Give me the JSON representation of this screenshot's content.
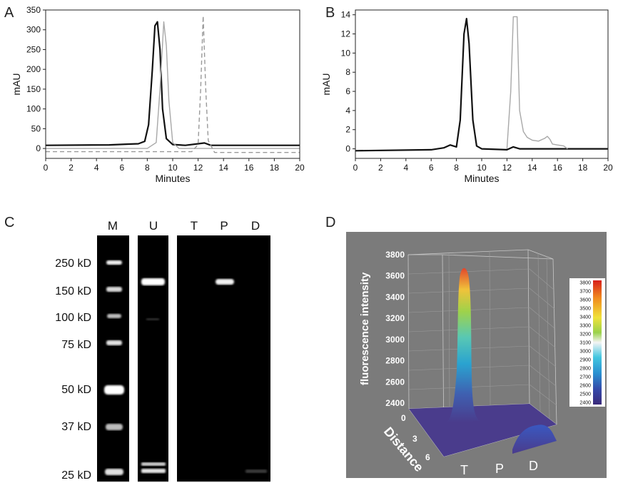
{
  "colors": {
    "black_trace": "#111111",
    "gray_trace": "#a8a8a8",
    "dashed_trace": "#999999",
    "panel_d_bg": "#7b7b7b",
    "floor": "#4a3c8c"
  },
  "panel_labels": [
    "A",
    "B",
    "C",
    "D"
  ],
  "chart_data": [
    {
      "panel": "A",
      "type": "line",
      "xlabel": "Minutes",
      "ylabel": "mAU",
      "xlim": [
        0,
        20
      ],
      "ylim": [
        -25,
        350
      ],
      "xticks": [
        0,
        2,
        4,
        6,
        8,
        10,
        12,
        14,
        16,
        18,
        20
      ],
      "yticks": [
        0,
        50,
        100,
        150,
        200,
        250,
        300,
        350
      ],
      "series": [
        {
          "style": "solid-black",
          "x": [
            0,
            5,
            6.5,
            7.3,
            7.8,
            8.1,
            8.4,
            8.6,
            8.8,
            9.0,
            9.2,
            9.5,
            10,
            11,
            12,
            12.5,
            13,
            20
          ],
          "y": [
            8,
            9,
            11,
            12,
            18,
            60,
            200,
            310,
            320,
            250,
            100,
            25,
            10,
            8,
            12,
            14,
            8,
            8
          ]
        },
        {
          "style": "solid-gray",
          "x": [
            0,
            8,
            8.7,
            9.0,
            9.3,
            9.5,
            9.7,
            10.0,
            10.5,
            20
          ],
          "y": [
            0,
            0,
            15,
            150,
            320,
            260,
            120,
            15,
            0,
            0
          ]
        },
        {
          "style": "dashed-gray",
          "x": [
            0,
            11.5,
            12.0,
            12.2,
            12.4,
            12.6,
            12.8,
            13.3,
            20
          ],
          "y": [
            -8,
            -8,
            10,
            150,
            335,
            150,
            20,
            -10,
            -10
          ]
        }
      ]
    },
    {
      "panel": "B",
      "type": "line",
      "xlabel": "Minutes",
      "ylabel": "mAU",
      "xlim": [
        0,
        20
      ],
      "ylim": [
        -1,
        14.5
      ],
      "xticks": [
        0,
        2,
        4,
        6,
        8,
        10,
        12,
        14,
        16,
        18,
        20
      ],
      "yticks": [
        0,
        2,
        4,
        6,
        8,
        10,
        12,
        14
      ],
      "series": [
        {
          "style": "solid-black",
          "x": [
            0,
            6,
            7,
            7.5,
            8.0,
            8.3,
            8.6,
            8.8,
            9.0,
            9.3,
            9.6,
            10,
            12,
            12.5,
            13,
            20
          ],
          "y": [
            -0.2,
            -0.1,
            0.1,
            0.4,
            0.2,
            3,
            12,
            13.6,
            11,
            3,
            0.3,
            0,
            -0.1,
            0.2,
            0,
            0
          ]
        },
        {
          "style": "solid-gray",
          "x": [
            12.0,
            12.3,
            12.5,
            12.8,
            13.0,
            13.3,
            13.6,
            14,
            14.5,
            15,
            15.2,
            15.4,
            15.6,
            16,
            16.5,
            16.8
          ],
          "y": [
            0,
            6,
            13.8,
            13.8,
            4,
            1.8,
            1.2,
            0.9,
            0.8,
            1.1,
            1.3,
            1.0,
            0.5,
            0.4,
            0.3,
            0
          ]
        }
      ]
    },
    {
      "panel": "C",
      "type": "gel",
      "lanes": [
        "M",
        "U",
        "T",
        "P",
        "D"
      ],
      "marker_labels": [
        "250 kD",
        "150 kD",
        "100 kD",
        "75 kD",
        "50 kD",
        "37 kD",
        "25 kD"
      ],
      "marker_kd": [
        250,
        150,
        100,
        75,
        50,
        37,
        25
      ]
    },
    {
      "panel": "D",
      "type": "surface3d",
      "zlabel": "fluorescence intensity",
      "zticks": [
        2400,
        2600,
        2800,
        3000,
        3200,
        3400,
        3600,
        3800
      ],
      "ylabel": "Distance",
      "yticks": [
        0,
        3,
        6
      ],
      "categories": [
        "T",
        "P",
        "D"
      ],
      "peak_T": 3700,
      "peak_D": 2500,
      "colorbar_ticks": [
        3800,
        3700,
        3600,
        3500,
        3400,
        3300,
        3200,
        3100,
        3000,
        2900,
        2800,
        2700,
        2600,
        2500,
        2400
      ]
    }
  ]
}
